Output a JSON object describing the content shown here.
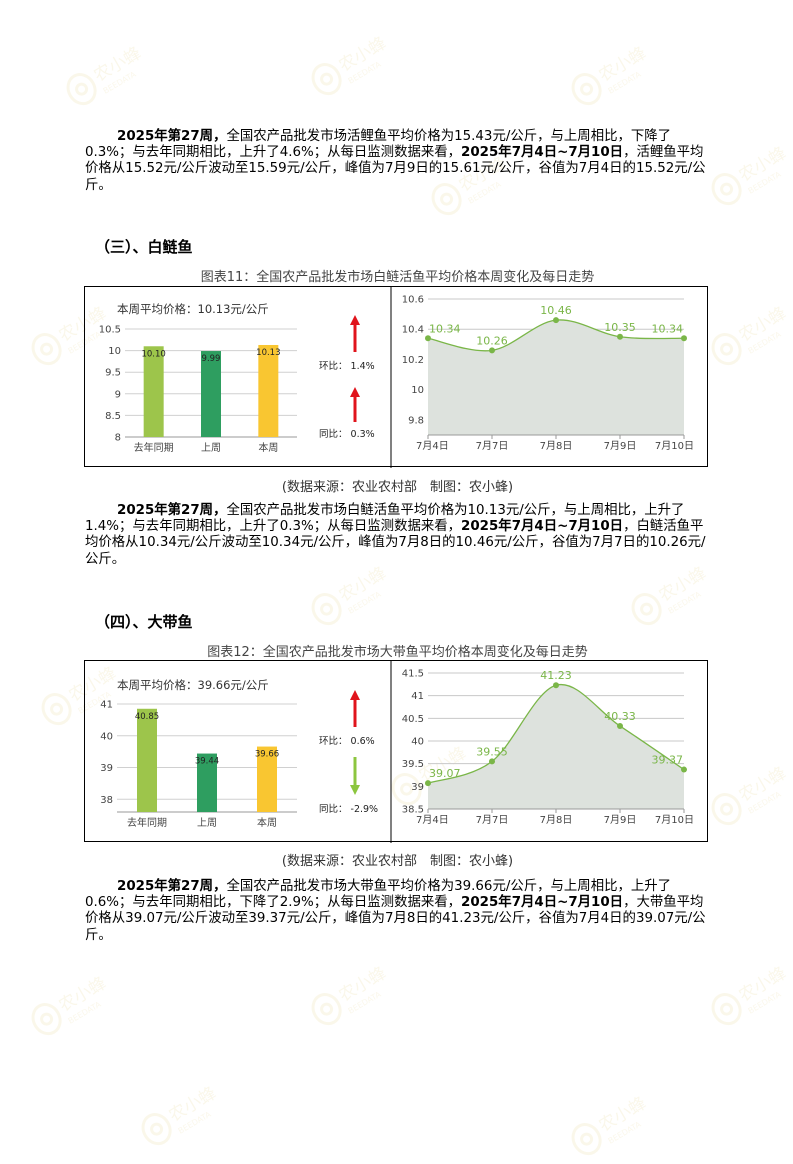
{
  "blocks": {
    "p1": {
      "parts": [
        {
          "b": true,
          "t": "2025年第27周，"
        },
        {
          "b": false,
          "t": "全国农产品批发市场活鲤鱼平均价格为15.43元/公斤，与上周相比，下降了0.3%；与去年同期相比，上升了4.6%；从每日监测数据来看，"
        },
        {
          "b": true,
          "t": "2025年7月4日~7月10日"
        },
        {
          "b": false,
          "t": "，活鲤鱼平均价格从15.52元/公斤波动至15.59元/公斤，峰值为7月9日的15.61元/公斤，谷值为7月4日的15.52元/公斤。"
        }
      ]
    },
    "h3": "（三）、白鲢鱼",
    "cap11": "图表11：全国农产品批发市场白鲢活鱼平均价格本周变化及每日走势",
    "src11": "(数据来源：农业农村部　制图：农小蜂)",
    "p2": {
      "parts": [
        {
          "b": true,
          "t": "2025年第27周，"
        },
        {
          "b": false,
          "t": "全国农产品批发市场白鲢活鱼平均价格为10.13元/公斤，与上周相比，上升了1.4%；与去年同期相比，上升了0.3%；从每日监测数据来看，"
        },
        {
          "b": true,
          "t": "2025年7月4日~7月10日"
        },
        {
          "b": false,
          "t": "，白鲢活鱼平均价格从10.34元/公斤波动至10.34元/公斤，峰值为7月8日的10.46元/公斤，谷值为7月7日的10.26元/公斤。"
        }
      ]
    },
    "h4": "（四）、大带鱼",
    "cap12": "图表12：全国农产品批发市场大带鱼平均价格本周变化及每日走势",
    "src12": "(数据来源：农业农村部　制图：农小蜂)",
    "p3": {
      "parts": [
        {
          "b": true,
          "t": "2025年第27周，"
        },
        {
          "b": false,
          "t": "全国农产品批发市场大带鱼平均价格为39.66元/公斤，与上周相比，上升了0.6%；与去年同期相比，下降了2.9%；从每日监测数据来看，"
        },
        {
          "b": true,
          "t": "2025年7月4日~7月10日"
        },
        {
          "b": false,
          "t": "，大带鱼平均价格从39.07元/公斤波动至39.37元/公斤，峰值为7月8日的41.23元/公斤，谷值为7月4日的39.07元/公斤。"
        }
      ]
    }
  },
  "chart_data": [
    {
      "id": "fig11-bar",
      "type": "bar",
      "title": "本周平均价格：10.13元/公斤",
      "categories": [
        "去年同期",
        "上周",
        "本周"
      ],
      "values": [
        10.1,
        9.99,
        10.13
      ],
      "value_labels": [
        "10.10",
        "9.99",
        "10.13"
      ],
      "colors": [
        "#9dc54b",
        "#2e9e60",
        "#f9c631"
      ],
      "ylim": [
        8,
        10.5
      ],
      "yticks": [
        8,
        8.5,
        9,
        9.5,
        10,
        10.5
      ],
      "ytick_labels": [
        "8",
        "8.5",
        "9",
        "9.5",
        "10",
        "10.5"
      ],
      "grid": true,
      "indicators": [
        {
          "label": "环比：",
          "value": "1.4%",
          "direction": "up",
          "color": "#e0141c"
        },
        {
          "label": "同比：",
          "value": "0.3%",
          "direction": "up",
          "color": "#e0141c"
        }
      ]
    },
    {
      "id": "fig11-line",
      "type": "area",
      "categories": [
        "7月4日",
        "7月7日",
        "7月8日",
        "7月9日",
        "7月10日"
      ],
      "values": [
        10.34,
        10.26,
        10.46,
        10.35,
        10.34
      ],
      "value_labels": [
        "10.34",
        "10.26",
        "10.46",
        "10.35",
        "10.34"
      ],
      "ylim": [
        9.7,
        10.6
      ],
      "yticks": [
        9.8,
        10,
        10.2,
        10.4,
        10.6
      ],
      "ytick_labels": [
        "9.8",
        "10",
        "10.2",
        "10.4",
        "10.6"
      ],
      "line_color": "#7ab648",
      "fill_color": "#dde2dd",
      "grid": true
    },
    {
      "id": "fig12-bar",
      "type": "bar",
      "title": "本周平均价格：39.66元/公斤",
      "categories": [
        "去年同期",
        "上周",
        "本周"
      ],
      "values": [
        40.85,
        39.44,
        39.66
      ],
      "value_labels": [
        "40.85",
        "39.44",
        "39.66"
      ],
      "colors": [
        "#9dc54b",
        "#2e9e60",
        "#f9c631"
      ],
      "ylim": [
        37.6,
        41
      ],
      "yticks": [
        38,
        39,
        40,
        41
      ],
      "ytick_labels": [
        "38",
        "39",
        "40",
        "41"
      ],
      "grid": true,
      "indicators": [
        {
          "label": "环比：",
          "value": "0.6%",
          "direction": "up",
          "color": "#e0141c"
        },
        {
          "label": "同比：",
          "value": "-2.9%",
          "direction": "down",
          "color": "#8cc63f"
        }
      ]
    },
    {
      "id": "fig12-line",
      "type": "area",
      "categories": [
        "7月4日",
        "7月7日",
        "7月8日",
        "7月9日",
        "7月10日"
      ],
      "values": [
        39.07,
        39.55,
        41.23,
        40.33,
        39.37
      ],
      "value_labels": [
        "39.07",
        "39.55",
        "41.23",
        "40.33",
        "39.37"
      ],
      "ylim": [
        38.5,
        41.5
      ],
      "yticks": [
        38.5,
        39,
        39.5,
        40,
        40.5,
        41,
        41.5
      ],
      "ytick_labels": [
        "38.5",
        "39",
        "39.5",
        "40",
        "40.5",
        "41",
        "41.5"
      ],
      "line_color": "#7ab648",
      "fill_color": "#dde2dd",
      "grid": true
    }
  ],
  "watermark": {
    "text": "农小蜂",
    "subtext": "BEEDATA",
    "color": "#c8a000"
  }
}
